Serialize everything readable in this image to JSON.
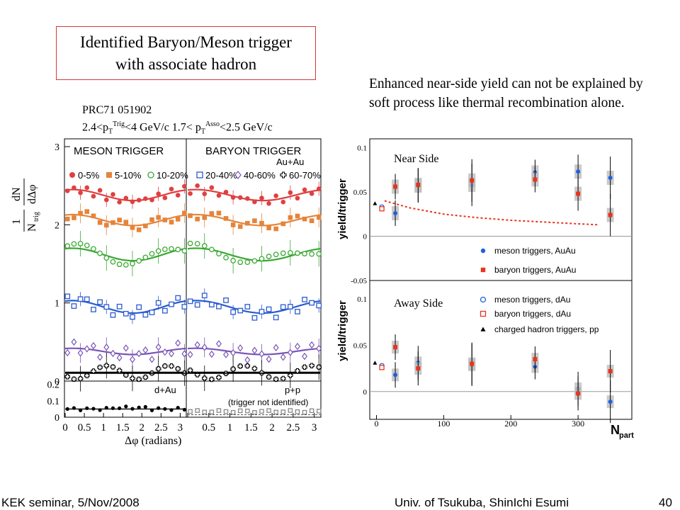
{
  "slide": {
    "title_line1": "Identified Baryon/Meson trigger",
    "title_line2": "with associate hadron",
    "reference": "PRC71 051902",
    "cuts": {
      "pre1": "2.4<p",
      "sub1": "T",
      "sup1": "Trig",
      "mid": "<4 GeV/c 1.7< p",
      "sub2": "T",
      "sup2": "Asso",
      "post": "<2.5 GeV/c"
    },
    "note": "Enhanced near-side yield can not be explained by soft process like thermal recombination alone.",
    "footer_left": "KEK seminar, 5/Nov/2008",
    "footer_center": "Univ. of Tsukuba, ShinIchi Esumi",
    "footer_right": "40",
    "accent_color": "#d23a3a"
  },
  "chart_data": [
    {
      "type": "scatter",
      "title_left": "MESON TRIGGER",
      "title_right": "BARYON TRIGGER",
      "system_label": "Au+Au",
      "bottom_left_label": "d+Au",
      "bottom_right_label": "p+p",
      "bottom_right_note": "(trigger not identified)",
      "xlabel": "Δφ (radians)",
      "ylabel_num": "1",
      "ylabel_den": "N",
      "ylabel_den_sub": "trig",
      "ylabel_frac_num": "dN",
      "ylabel_frac_den": "dΔφ",
      "xticks": [
        "0",
        "0.5",
        "1",
        "1.5",
        "2",
        "2.5",
        "3"
      ],
      "yticks_top": [
        "1",
        "2",
        "3"
      ],
      "yticks_bottom": [
        "0",
        "0.1",
        "0.2"
      ],
      "xlim": [
        0,
        3.14
      ],
      "ylim_top": [
        0,
        3.1
      ],
      "ylim_bottom": [
        0,
        0.22
      ],
      "legend_top": [
        {
          "label": "0-5%",
          "color": "#e04040",
          "marker": "circle"
        },
        {
          "label": "5-10%",
          "color": "#e5843a",
          "marker": "square"
        },
        {
          "label": "10-20%",
          "color": "#3aa832",
          "marker": "open-circle"
        }
      ],
      "legend_bottom": [
        {
          "label": "20-40%",
          "color": "#2a5bd0",
          "marker": "open-square"
        },
        {
          "label": "40-60%",
          "color": "#7a55b5",
          "marker": "open-diamond"
        },
        {
          "label": "60-70%",
          "color": "#000000",
          "marker": "open-cross"
        }
      ],
      "series": [
        {
          "centrality": "0-5%",
          "color": "#e04040",
          "level": 2.38,
          "amp": 0.07
        },
        {
          "centrality": "5-10%",
          "color": "#e5843a",
          "level": 2.06,
          "amp": 0.07
        },
        {
          "centrality": "10-20%",
          "color": "#3aa832",
          "level": 1.62,
          "amp": 0.08
        },
        {
          "centrality": "20-40%",
          "color": "#2a5bd0",
          "level": 0.95,
          "amp": 0.08
        },
        {
          "centrality": "40-60%",
          "color": "#7a55b5",
          "level": 0.38,
          "amp": 0.04
        },
        {
          "centrality": "60-70%",
          "color": "#000000",
          "level": 0.11,
          "amp": 0.0
        }
      ],
      "dau_level": 0.05
    },
    {
      "type": "scatter",
      "panel_top_label": "Near Side",
      "panel_bottom_label": "Away Side",
      "ylabel": "yield/trigger",
      "xlabel": "N",
      "xlabel_sub": "part",
      "xticks": [
        "0",
        "100",
        "200",
        "300"
      ],
      "yticks_top": [
        "-0.05",
        "0",
        "0.05",
        "0.1"
      ],
      "yticks_bottom": [
        "0",
        "0.05",
        "0.1"
      ],
      "xlim": [
        -10,
        380
      ],
      "ylim_top": [
        -0.05,
        0.11
      ],
      "ylim_bottom": [
        -0.03,
        0.12
      ],
      "legend": [
        {
          "label": "meson triggers, AuAu",
          "color": "#1f5fe0",
          "marker": "circle"
        },
        {
          "label": "baryon triggers, AuAu",
          "color": "#e8341c",
          "marker": "square"
        },
        {
          "label": "meson triggers, dAu",
          "color": "#1f5fe0",
          "marker": "open-circle"
        },
        {
          "label": "baryon triggers, dAu",
          "color": "#e8341c",
          "marker": "open-square"
        },
        {
          "label": "charged hadron triggers, pp",
          "color": "#000000",
          "marker": "triangle"
        }
      ],
      "near_side": {
        "meson_AuAu": [
          [
            28,
            0.026
          ],
          [
            62,
            0.057
          ],
          [
            142,
            0.058
          ],
          [
            236,
            0.072
          ],
          [
            300,
            0.073
          ],
          [
            348,
            0.066
          ]
        ],
        "baryon_AuAu": [
          [
            28,
            0.056
          ],
          [
            62,
            0.058
          ],
          [
            142,
            0.063
          ],
          [
            236,
            0.064
          ],
          [
            300,
            0.048
          ],
          [
            348,
            0.024
          ]
        ],
        "meson_dAu": [
          [
            8,
            0.033
          ]
        ],
        "baryon_dAu": [
          [
            8,
            0.031
          ]
        ],
        "hadron_pp": [
          [
            2,
            0.037
          ]
        ],
        "recombination_curve": [
          [
            12,
            0.04
          ],
          [
            50,
            0.032
          ],
          [
            100,
            0.025
          ],
          [
            150,
            0.021
          ],
          [
            200,
            0.018
          ],
          [
            250,
            0.016
          ],
          [
            300,
            0.014
          ],
          [
            330,
            0.013
          ]
        ]
      },
      "away_side": {
        "meson_AuAu": [
          [
            28,
            0.018
          ],
          [
            62,
            0.031
          ],
          [
            142,
            0.029
          ],
          [
            236,
            0.027
          ],
          [
            300,
            0.003
          ],
          [
            348,
            -0.011
          ]
        ],
        "baryon_AuAu": [
          [
            28,
            0.048
          ],
          [
            62,
            0.025
          ],
          [
            142,
            0.03
          ],
          [
            236,
            0.035
          ],
          [
            300,
            -0.002
          ],
          [
            348,
            0.022
          ]
        ],
        "meson_dAu": [
          [
            8,
            0.028
          ]
        ],
        "baryon_dAu": [
          [
            8,
            0.026
          ]
        ],
        "hadron_pp": [
          [
            2,
            0.031
          ]
        ]
      }
    }
  ]
}
